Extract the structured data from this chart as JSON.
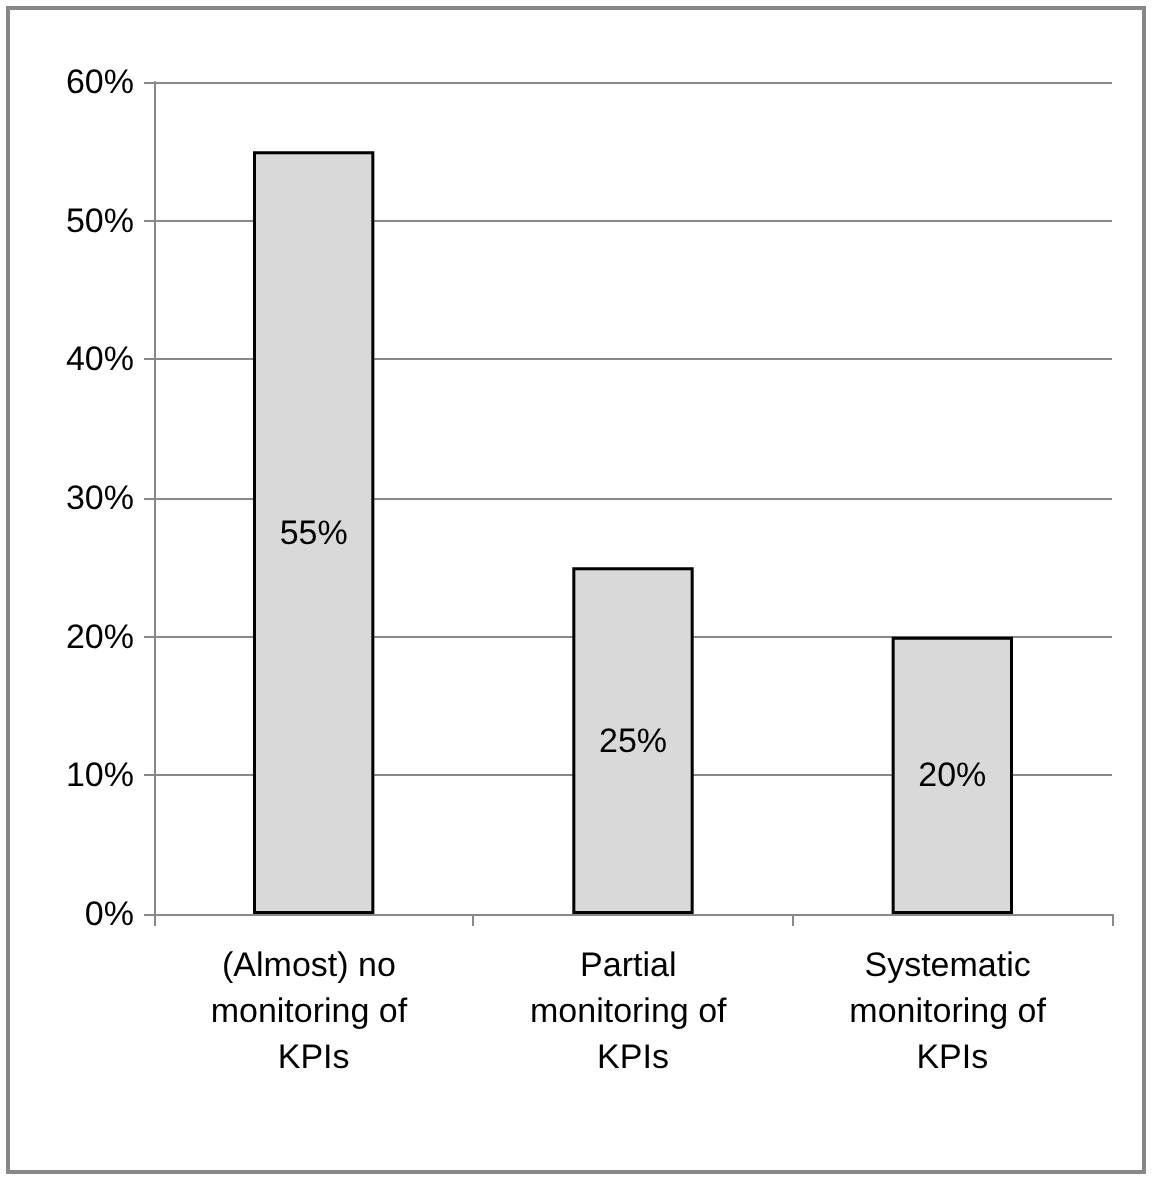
{
  "chart_data": {
    "type": "bar",
    "categories": [
      "(Almost) no monitoring of KPIs",
      "Partial monitoring of KPIs",
      "Systematic monitoring of KPIs"
    ],
    "values": [
      55,
      25,
      20
    ],
    "value_labels": [
      "55%",
      "25%",
      "20%"
    ],
    "color": "#d9d9d9",
    "ylim": [
      0,
      60
    ],
    "yticks": [
      {
        "value": 0,
        "label": "0%"
      },
      {
        "value": 10,
        "label": "10%"
      },
      {
        "value": 20,
        "label": "20%"
      },
      {
        "value": 30,
        "label": "30%"
      },
      {
        "value": 40,
        "label": "40%"
      },
      {
        "value": 50,
        "label": "50%"
      },
      {
        "value": 60,
        "label": "60%"
      }
    ],
    "grid": "y"
  }
}
